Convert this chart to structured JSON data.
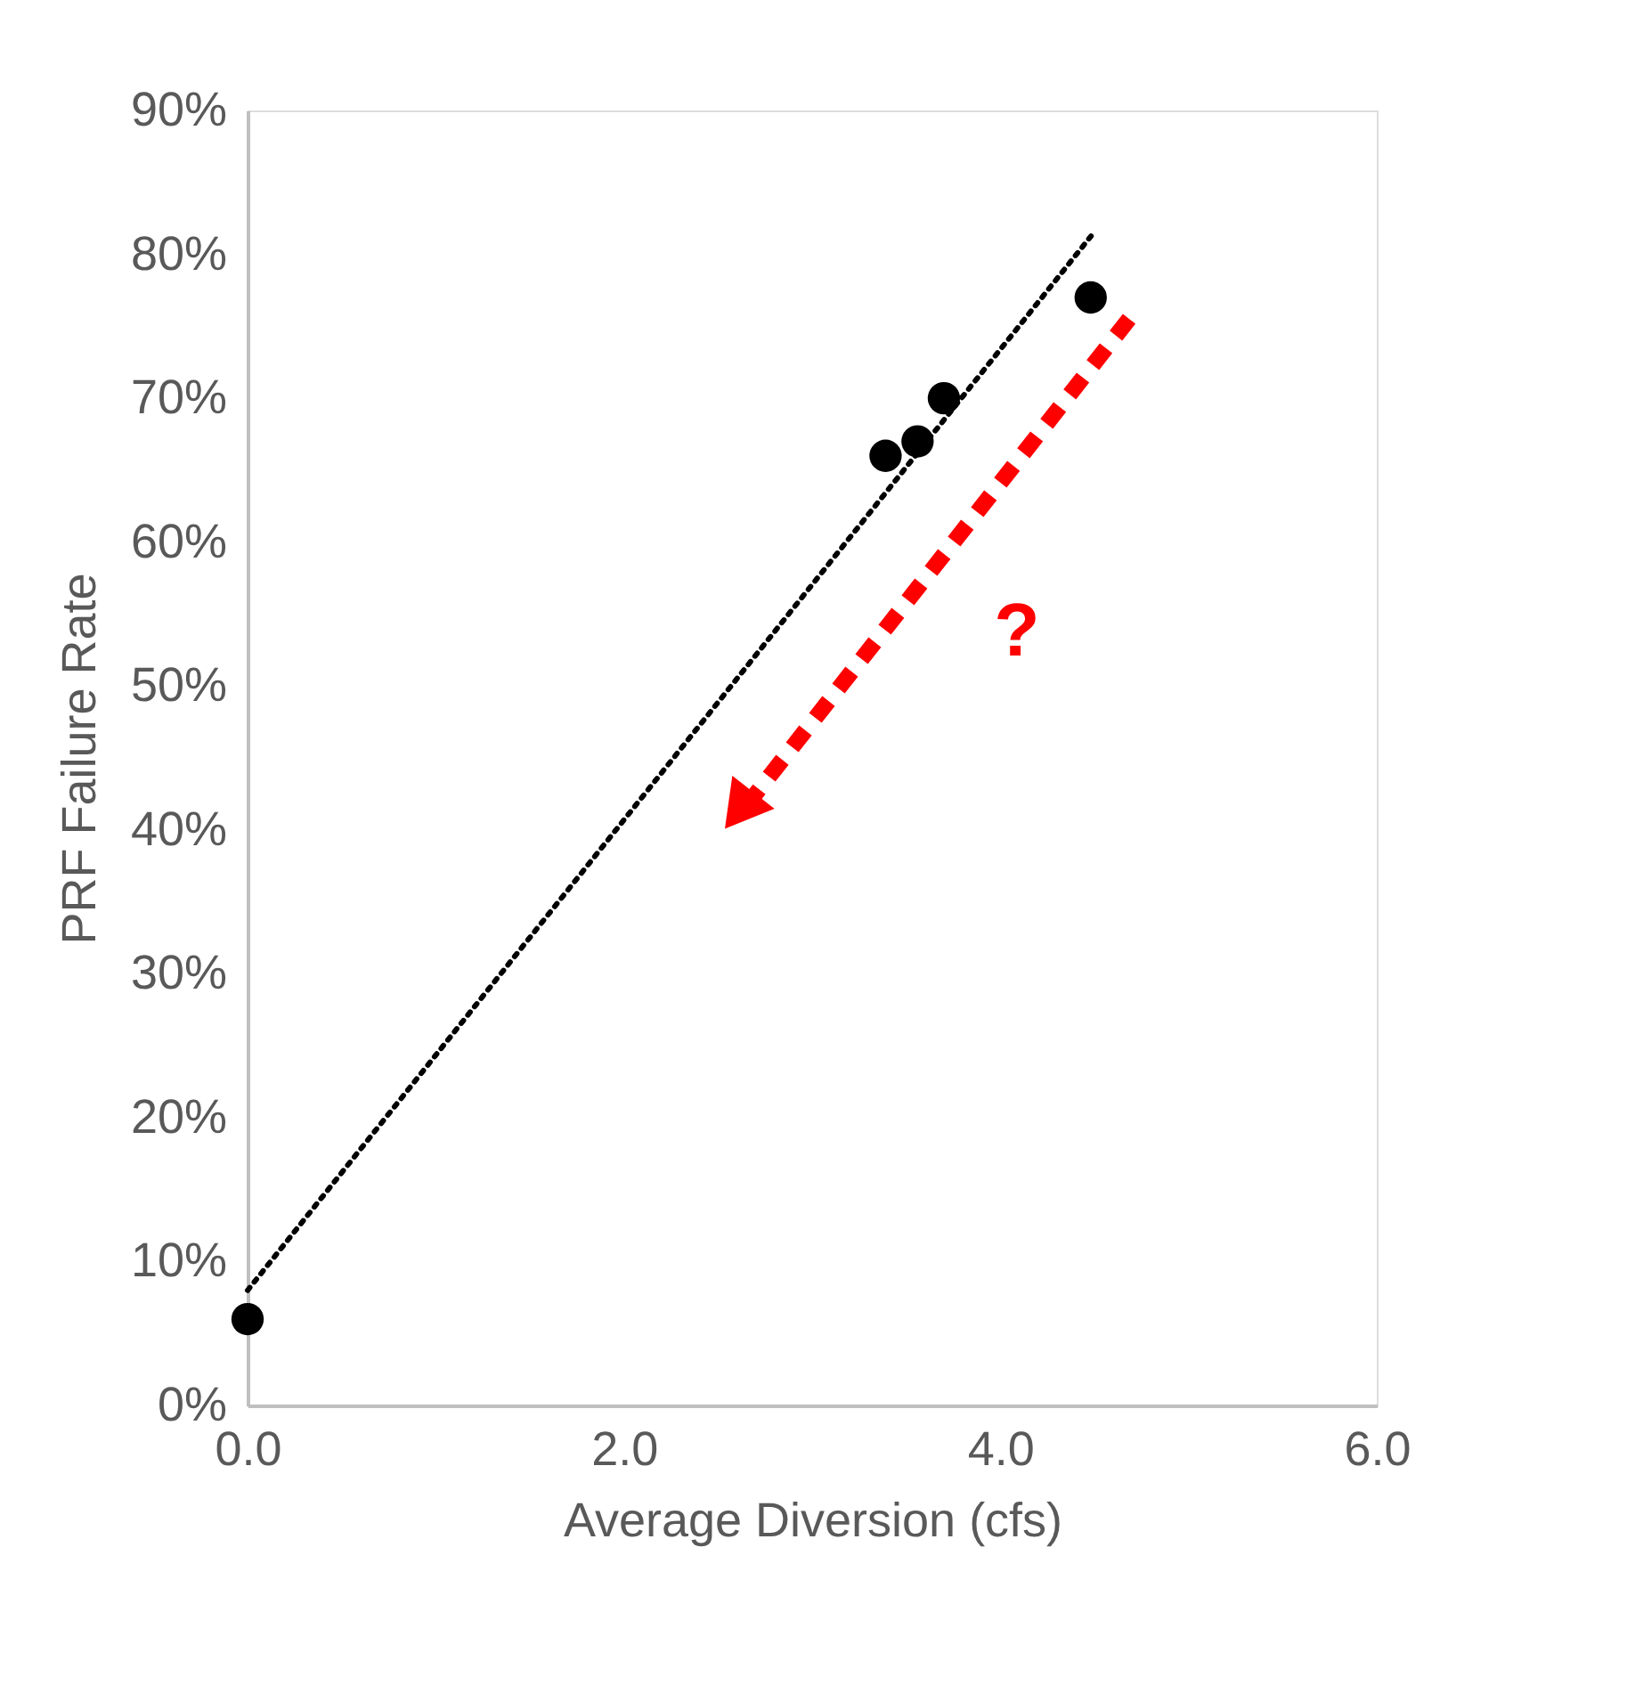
{
  "chart_data": {
    "type": "scatter",
    "xlabel": "Average Diversion (cfs)",
    "ylabel": "PRF Failure Rate",
    "series": [
      {
        "color": "#000000",
        "marker": "circle",
        "x": [
          0.0,
          3.39,
          3.56,
          3.7,
          4.48
        ],
        "values": [
          6,
          66,
          67,
          70,
          77
        ]
      },
      {
        "type": "line",
        "color": "#000000",
        "line_style": "dotted",
        "marker": "none",
        "x": [
          0.0,
          4.49
        ],
        "values": [
          8,
          81.4
        ]
      }
    ],
    "xlim": [
      0,
      6
    ],
    "xticks": [
      {
        "value": 0,
        "label": "0.0"
      },
      {
        "value": 2,
        "label": "2.0"
      },
      {
        "value": 4,
        "label": "4.0"
      },
      {
        "value": 6,
        "label": "6.0"
      }
    ],
    "ylim": [
      0,
      90
    ],
    "yticks": [
      {
        "value": 0,
        "label": "0%"
      },
      {
        "value": 10,
        "label": "10%"
      },
      {
        "value": 20,
        "label": "20%"
      },
      {
        "value": 30,
        "label": "30%"
      },
      {
        "value": 40,
        "label": "40%"
      },
      {
        "value": 50,
        "label": "50%"
      },
      {
        "value": 60,
        "label": "60%"
      },
      {
        "value": 70,
        "label": "70%"
      },
      {
        "value": 80,
        "label": "80%"
      },
      {
        "value": 90,
        "label": "90%"
      }
    ],
    "grid": false,
    "annotations": [
      "?"
    ]
  }
}
